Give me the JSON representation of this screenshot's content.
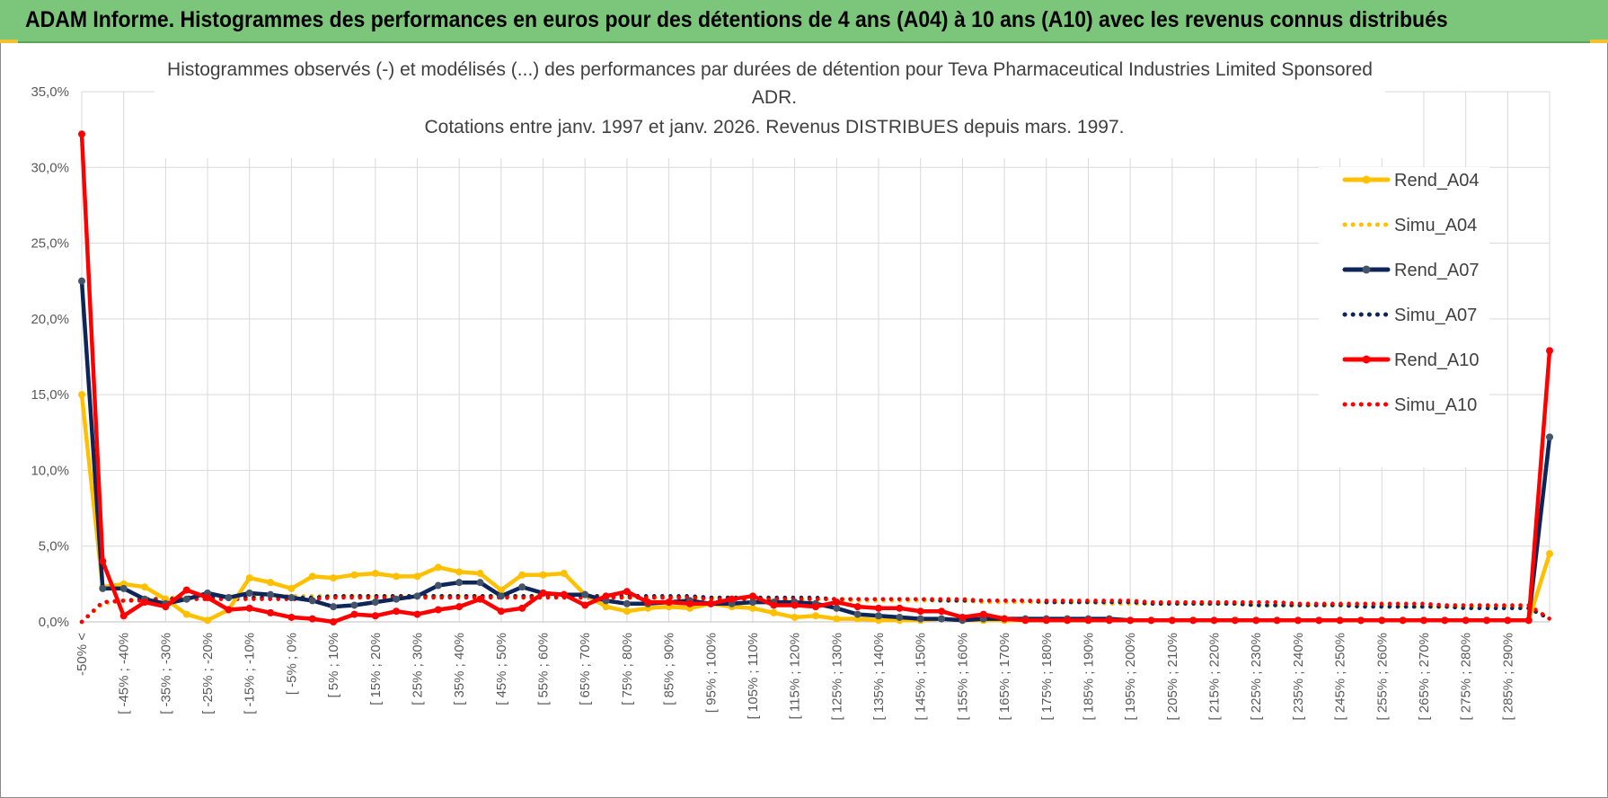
{
  "header": {
    "title": "ADAM Informe. Histogrammes des performances en euros pour des détentions de 4 ans (A04) à 10 ans (A10) avec les revenus connus distribués"
  },
  "colors": {
    "header_bg": "#7bc67a",
    "a04": "#ffc000",
    "a07": "#0d2559",
    "a10": "#ff0000",
    "grid": "#d9d9d9"
  },
  "chart_data": {
    "type": "line",
    "title_lines": [
      "Histogrammes observés (-) et modélisés (...) des performances par durées de détention pour Teva Pharmaceutical Industries Limited Sponsored",
      "ADR.",
      "Cotations entre janv. 1997 et janv. 2026. Revenus DISTRIBUES depuis mars. 1997."
    ],
    "y_tick_labels": [
      "0,0%",
      "5,0%",
      "10,0%",
      "15,0%",
      "20,0%",
      "25,0%",
      "30,0%",
      "35,0%"
    ],
    "ylim": [
      0,
      35
    ],
    "x_labels": [
      "-50% <",
      "[ -45% ; -40%",
      "[ -35% ; -30%",
      "[ -25% ; -20%",
      "[ -15% ; -10%",
      "[ -5% ; 0%",
      "[ 5% ; 10%",
      "[ 15% ; 20%",
      "[ 25% ; 30%",
      "[ 35% ; 40%",
      "[ 45% ; 50%",
      "[ 55% ; 60%",
      "[ 65% ; 70%",
      "[ 75% ; 80%",
      "[ 85% ; 90%",
      "[ 95% ; 100%",
      "[ 105% ; 110%",
      "[ 115% ; 120%",
      "[ 125% ; 130%",
      "[ 135% ; 140%",
      "[ 145% ; 150%",
      "[ 155% ; 160%",
      "[ 165% ; 170%",
      "[ 175% ; 180%",
      "[ 185% ; 190%",
      "[ 195% ; 200%",
      "[ 205% ; 210%",
      "[ 215% ; 220%",
      "[ 225% ; 230%",
      "[ 235% ; 240%",
      "[ 245% ; 250%",
      "[ 255% ; 260%",
      "[ 265% ; 270%",
      "[ 275% ; 280%",
      "[ 285% ; 290%"
    ],
    "n_categories": 71,
    "series": [
      {
        "name": "Rend_A04",
        "style": "solid",
        "color": "#ffc000",
        "values": [
          15.0,
          2.3,
          2.5,
          2.3,
          1.5,
          0.5,
          0.1,
          0.8,
          2.9,
          2.6,
          2.2,
          3.0,
          2.9,
          3.1,
          3.2,
          3.0,
          3.0,
          3.6,
          3.3,
          3.2,
          2.1,
          3.1,
          3.1,
          3.2,
          1.8,
          1.0,
          0.7,
          0.9,
          1.0,
          0.9,
          1.2,
          1.0,
          0.9,
          0.6,
          0.3,
          0.4,
          0.2,
          0.2,
          0.1,
          0.1,
          0.1,
          0.2,
          0.1,
          0.1,
          0.1,
          0.1,
          0.1,
          0.1,
          0.1,
          0.1,
          0.1,
          0.1,
          0.1,
          0.1,
          0.1,
          0.1,
          0.1,
          0.1,
          0.1,
          0.1,
          0.1,
          0.1,
          0.1,
          0.1,
          0.1,
          0.1,
          0.1,
          0.1,
          0.1,
          0.1,
          4.5
        ]
      },
      {
        "name": "Simu_A04",
        "style": "dotted",
        "color": "#ffc000",
        "values": [
          0.0,
          1.2,
          1.4,
          1.5,
          1.6,
          1.6,
          1.7,
          1.7,
          1.7,
          1.7,
          1.7,
          1.7,
          1.7,
          1.7,
          1.7,
          1.7,
          1.7,
          1.7,
          1.7,
          1.7,
          1.7,
          1.7,
          1.7,
          1.7,
          1.7,
          1.7,
          1.6,
          1.6,
          1.6,
          1.6,
          1.6,
          1.6,
          1.5,
          1.5,
          1.5,
          1.5,
          1.5,
          1.4,
          1.4,
          1.4,
          1.4,
          1.4,
          1.4,
          1.3,
          1.3,
          1.3,
          1.3,
          1.3,
          1.3,
          1.2,
          1.2,
          1.2,
          1.2,
          1.2,
          1.2,
          1.2,
          1.1,
          1.1,
          1.1,
          1.1,
          1.1,
          1.1,
          1.1,
          1.0,
          1.0,
          1.0,
          1.0,
          1.0,
          1.0,
          1.0,
          0.2
        ]
      },
      {
        "name": "Rend_A07",
        "style": "solid",
        "color": "#0d2559",
        "values": [
          22.5,
          2.2,
          2.2,
          1.5,
          1.2,
          1.5,
          1.9,
          1.6,
          1.9,
          1.8,
          1.6,
          1.4,
          1.0,
          1.1,
          1.3,
          1.5,
          1.7,
          2.4,
          2.6,
          2.6,
          1.7,
          2.3,
          1.9,
          1.8,
          1.8,
          1.4,
          1.2,
          1.2,
          1.3,
          1.4,
          1.2,
          1.2,
          1.3,
          1.3,
          1.3,
          1.2,
          0.9,
          0.5,
          0.4,
          0.3,
          0.2,
          0.2,
          0.1,
          0.2,
          0.2,
          0.2,
          0.2,
          0.2,
          0.2,
          0.2,
          0.1,
          0.1,
          0.1,
          0.1,
          0.1,
          0.1,
          0.1,
          0.1,
          0.1,
          0.1,
          0.1,
          0.1,
          0.1,
          0.1,
          0.1,
          0.1,
          0.1,
          0.1,
          0.1,
          0.1,
          12.2
        ]
      },
      {
        "name": "Simu_A07",
        "style": "dotted",
        "color": "#0d2559",
        "values": [
          0.0,
          1.3,
          1.4,
          1.5,
          1.5,
          1.6,
          1.6,
          1.6,
          1.6,
          1.6,
          1.6,
          1.6,
          1.7,
          1.7,
          1.7,
          1.7,
          1.7,
          1.7,
          1.7,
          1.7,
          1.7,
          1.7,
          1.7,
          1.7,
          1.7,
          1.7,
          1.7,
          1.7,
          1.7,
          1.7,
          1.6,
          1.6,
          1.6,
          1.6,
          1.6,
          1.6,
          1.5,
          1.5,
          1.5,
          1.5,
          1.5,
          1.4,
          1.4,
          1.4,
          1.4,
          1.4,
          1.3,
          1.3,
          1.3,
          1.3,
          1.3,
          1.2,
          1.2,
          1.2,
          1.2,
          1.2,
          1.1,
          1.1,
          1.1,
          1.1,
          1.1,
          1.0,
          1.0,
          1.0,
          1.0,
          1.0,
          0.9,
          0.9,
          0.9,
          0.9,
          0.2
        ]
      },
      {
        "name": "Rend_A10",
        "style": "solid",
        "color": "#ff0000",
        "values": [
          32.2,
          4.0,
          0.4,
          1.3,
          1.0,
          2.1,
          1.6,
          0.8,
          0.9,
          0.6,
          0.3,
          0.2,
          0.0,
          0.5,
          0.4,
          0.7,
          0.5,
          0.8,
          1.0,
          1.5,
          0.7,
          0.9,
          1.9,
          1.8,
          1.1,
          1.7,
          2.0,
          1.3,
          1.3,
          1.2,
          1.2,
          1.5,
          1.7,
          1.1,
          1.1,
          1.0,
          1.3,
          1.0,
          0.9,
          0.9,
          0.7,
          0.7,
          0.3,
          0.5,
          0.2,
          0.1,
          0.1,
          0.1,
          0.1,
          0.1,
          0.1,
          0.1,
          0.1,
          0.1,
          0.1,
          0.1,
          0.1,
          0.1,
          0.1,
          0.1,
          0.1,
          0.1,
          0.1,
          0.1,
          0.1,
          0.1,
          0.1,
          0.1,
          0.1,
          0.1,
          17.9
        ]
      },
      {
        "name": "Simu_A10",
        "style": "dotted",
        "color": "#ff0000",
        "values": [
          0.0,
          1.3,
          1.4,
          1.4,
          1.5,
          1.5,
          1.5,
          1.5,
          1.5,
          1.5,
          1.5,
          1.5,
          1.6,
          1.6,
          1.6,
          1.6,
          1.6,
          1.6,
          1.6,
          1.6,
          1.6,
          1.6,
          1.6,
          1.6,
          1.6,
          1.6,
          1.6,
          1.6,
          1.6,
          1.6,
          1.5,
          1.5,
          1.5,
          1.5,
          1.5,
          1.5,
          1.5,
          1.5,
          1.5,
          1.5,
          1.5,
          1.5,
          1.5,
          1.4,
          1.4,
          1.4,
          1.4,
          1.4,
          1.4,
          1.4,
          1.4,
          1.3,
          1.3,
          1.3,
          1.3,
          1.3,
          1.3,
          1.3,
          1.2,
          1.2,
          1.2,
          1.2,
          1.2,
          1.2,
          1.2,
          1.1,
          1.1,
          1.1,
          1.1,
          1.1,
          0.2
        ]
      }
    ],
    "legend": [
      "Rend_A04",
      "Simu_A04",
      "Rend_A07",
      "Simu_A07",
      "Rend_A10",
      "Simu_A10"
    ],
    "legend_position": "right",
    "grid": true
  }
}
